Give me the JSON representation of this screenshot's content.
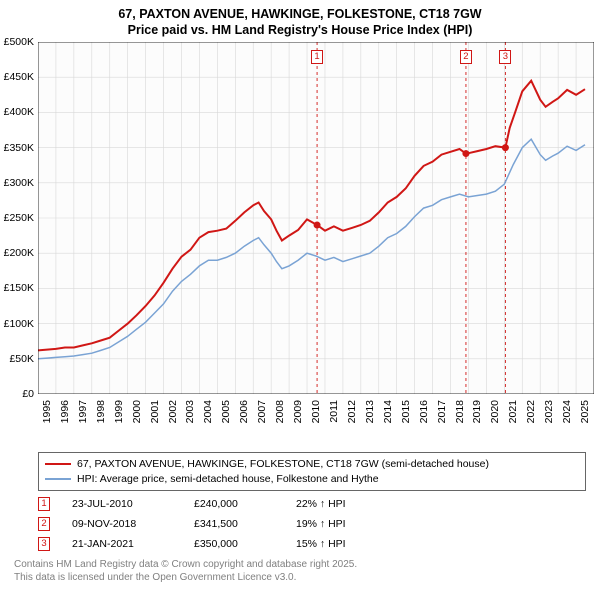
{
  "title_line1": "67, PAXTON AVENUE, HAWKINGE, FOLKESTONE, CT18 7GW",
  "title_line2": "Price paid vs. HM Land Registry's House Price Index (HPI)",
  "chart": {
    "type": "line",
    "xlim": [
      1995,
      2026
    ],
    "ylim": [
      0,
      500000
    ],
    "ytick_step": 50000,
    "y_tick_labels": [
      "£0",
      "£50K",
      "£100K",
      "£150K",
      "£200K",
      "£250K",
      "£300K",
      "£350K",
      "£400K",
      "£450K",
      "£500K"
    ],
    "x_tick_labels": [
      "1995",
      "1996",
      "1997",
      "1998",
      "1999",
      "2000",
      "2001",
      "2002",
      "2003",
      "2004",
      "2005",
      "2006",
      "2007",
      "2008",
      "2009",
      "2010",
      "2011",
      "2012",
      "2013",
      "2014",
      "2015",
      "2016",
      "2017",
      "2018",
      "2019",
      "2020",
      "2021",
      "2022",
      "2023",
      "2024",
      "2025"
    ],
    "background_color": "#fcfcfc",
    "grid_color": "#d8d8d8",
    "series": {
      "price_paid": {
        "color": "#d01715",
        "width": 2,
        "data": [
          [
            1995,
            62
          ],
          [
            1995.5,
            63
          ],
          [
            1996,
            64
          ],
          [
            1996.5,
            66
          ],
          [
            1997,
            66
          ],
          [
            1997.5,
            69
          ],
          [
            1998,
            72
          ],
          [
            1998.5,
            76
          ],
          [
            1999,
            80
          ],
          [
            1999.5,
            90
          ],
          [
            2000,
            100
          ],
          [
            2000.5,
            112
          ],
          [
            2001,
            125
          ],
          [
            2001.5,
            140
          ],
          [
            2002,
            158
          ],
          [
            2002.5,
            178
          ],
          [
            2003,
            195
          ],
          [
            2003.5,
            205
          ],
          [
            2004,
            222
          ],
          [
            2004.5,
            230
          ],
          [
            2005,
            232
          ],
          [
            2005.5,
            235
          ],
          [
            2006,
            246
          ],
          [
            2006.5,
            258
          ],
          [
            2007,
            268
          ],
          [
            2007.3,
            272
          ],
          [
            2007.6,
            260
          ],
          [
            2008,
            248
          ],
          [
            2008.3,
            232
          ],
          [
            2008.6,
            218
          ],
          [
            2009,
            225
          ],
          [
            2009.5,
            233
          ],
          [
            2010,
            248
          ],
          [
            2010.56,
            240
          ],
          [
            2011,
            232
          ],
          [
            2011.5,
            238
          ],
          [
            2012,
            232
          ],
          [
            2012.5,
            236
          ],
          [
            2013,
            240
          ],
          [
            2013.5,
            246
          ],
          [
            2014,
            258
          ],
          [
            2014.5,
            272
          ],
          [
            2015,
            280
          ],
          [
            2015.5,
            292
          ],
          [
            2016,
            310
          ],
          [
            2016.5,
            324
          ],
          [
            2017,
            330
          ],
          [
            2017.5,
            340
          ],
          [
            2018,
            344
          ],
          [
            2018.5,
            348
          ],
          [
            2018.86,
            341.5
          ],
          [
            2019,
            342
          ],
          [
            2019.5,
            345
          ],
          [
            2020,
            348
          ],
          [
            2020.5,
            352
          ],
          [
            2021.06,
            350
          ],
          [
            2021.3,
            378
          ],
          [
            2021.6,
            400
          ],
          [
            2022,
            430
          ],
          [
            2022.5,
            445
          ],
          [
            2023,
            418
          ],
          [
            2023.3,
            408
          ],
          [
            2023.7,
            415
          ],
          [
            2024,
            420
          ],
          [
            2024.5,
            432
          ],
          [
            2025,
            425
          ],
          [
            2025.5,
            433
          ]
        ]
      },
      "hpi": {
        "color": "#7aa3d4",
        "width": 1.5,
        "data": [
          [
            1995,
            50
          ],
          [
            1995.5,
            51
          ],
          [
            1996,
            52
          ],
          [
            1996.5,
            53
          ],
          [
            1997,
            54
          ],
          [
            1997.5,
            56
          ],
          [
            1998,
            58
          ],
          [
            1998.5,
            62
          ],
          [
            1999,
            66
          ],
          [
            1999.5,
            74
          ],
          [
            2000,
            82
          ],
          [
            2000.5,
            92
          ],
          [
            2001,
            102
          ],
          [
            2001.5,
            115
          ],
          [
            2002,
            128
          ],
          [
            2002.5,
            146
          ],
          [
            2003,
            160
          ],
          [
            2003.5,
            170
          ],
          [
            2004,
            182
          ],
          [
            2004.5,
            190
          ],
          [
            2005,
            190
          ],
          [
            2005.5,
            194
          ],
          [
            2006,
            200
          ],
          [
            2006.5,
            210
          ],
          [
            2007,
            218
          ],
          [
            2007.3,
            222
          ],
          [
            2007.6,
            212
          ],
          [
            2008,
            200
          ],
          [
            2008.3,
            188
          ],
          [
            2008.6,
            178
          ],
          [
            2009,
            182
          ],
          [
            2009.5,
            190
          ],
          [
            2010,
            200
          ],
          [
            2010.5,
            196
          ],
          [
            2011,
            190
          ],
          [
            2011.5,
            194
          ],
          [
            2012,
            188
          ],
          [
            2012.5,
            192
          ],
          [
            2013,
            196
          ],
          [
            2013.5,
            200
          ],
          [
            2014,
            210
          ],
          [
            2014.5,
            222
          ],
          [
            2015,
            228
          ],
          [
            2015.5,
            238
          ],
          [
            2016,
            252
          ],
          [
            2016.5,
            264
          ],
          [
            2017,
            268
          ],
          [
            2017.5,
            276
          ],
          [
            2018,
            280
          ],
          [
            2018.5,
            284
          ],
          [
            2019,
            280
          ],
          [
            2019.5,
            282
          ],
          [
            2020,
            284
          ],
          [
            2020.5,
            288
          ],
          [
            2021,
            298
          ],
          [
            2021.5,
            326
          ],
          [
            2022,
            350
          ],
          [
            2022.5,
            362
          ],
          [
            2023,
            340
          ],
          [
            2023.3,
            332
          ],
          [
            2023.7,
            338
          ],
          [
            2024,
            342
          ],
          [
            2024.5,
            352
          ],
          [
            2025,
            346
          ],
          [
            2025.5,
            354
          ]
        ]
      }
    },
    "sale_markers": [
      {
        "n": "1",
        "x": 2010.56,
        "y": 240,
        "color": "#d01715"
      },
      {
        "n": "2",
        "x": 2018.86,
        "y": 341.5,
        "color": "#d01715"
      },
      {
        "n": "3",
        "x": 2021.06,
        "y": 350,
        "color": "#d01715"
      }
    ]
  },
  "legend": [
    {
      "color": "#d01715",
      "width": 2,
      "label": "67, PAXTON AVENUE, HAWKINGE, FOLKESTONE, CT18 7GW (semi-detached house)"
    },
    {
      "color": "#7aa3d4",
      "width": 1.5,
      "label": "HPI: Average price, semi-detached house, Folkestone and Hythe"
    }
  ],
  "sales": [
    {
      "n": "1",
      "color": "#d01715",
      "date": "23-JUL-2010",
      "price": "£240,000",
      "pct": "22% ↑ HPI"
    },
    {
      "n": "2",
      "color": "#d01715",
      "date": "09-NOV-2018",
      "price": "£341,500",
      "pct": "19% ↑ HPI"
    },
    {
      "n": "3",
      "color": "#d01715",
      "date": "21-JAN-2021",
      "price": "£350,000",
      "pct": "15% ↑ HPI"
    }
  ],
  "footnote_line1": "Contains HM Land Registry data © Crown copyright and database right 2025.",
  "footnote_line2": "This data is licensed under the Open Government Licence v3.0."
}
